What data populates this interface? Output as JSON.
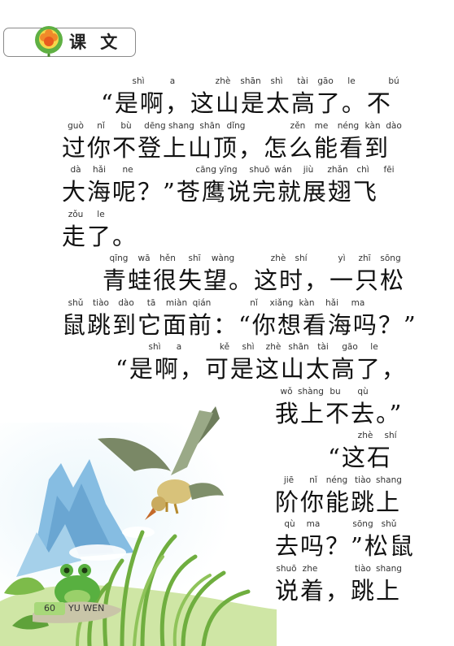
{
  "header": {
    "title": "课 文"
  },
  "lines": [
    {
      "pinyin": [
        "shì",
        "a",
        "zhè",
        "shān",
        "shì",
        "tài",
        "gāo",
        "le",
        "bú"
      ],
      "text": "“是啊，这山是太高了。不"
    },
    {
      "pinyin": [
        "guò",
        "nǐ",
        "bù",
        "dēng shang",
        "shān",
        "dǐng",
        "zěn",
        "me",
        "néng",
        "kàn",
        "dào"
      ],
      "text": "过你不登上山顶，怎么能看到"
    },
    {
      "pinyin": [
        "dà",
        "hǎi",
        "ne",
        "cāng yīng",
        "shuō",
        "wán",
        "jiù",
        "zhǎn",
        "chì",
        "fēi"
      ],
      "text": "大海呢？”苍鹰说完就展翅飞"
    },
    {
      "pinyin": [
        "zǒu",
        "le"
      ],
      "text": "走了。"
    },
    {
      "pinyin": [
        "qīng",
        "wā",
        "hěn",
        "shī",
        "wàng",
        "zhè",
        "shí",
        "yì",
        "zhī",
        "sōng"
      ],
      "text": "青蛙很失望。这时，一只松"
    },
    {
      "pinyin": [
        "shǔ",
        "tiào",
        "dào",
        "tā",
        "miàn",
        "qián",
        "nǐ",
        "xiǎng",
        "kàn",
        "hǎi",
        "ma"
      ],
      "text": "鼠跳到它面前：“你想看海吗？”"
    },
    {
      "pinyin": [
        "shì",
        "a",
        "kě",
        "shì",
        "zhè",
        "shān",
        "tài",
        "gāo",
        "le"
      ],
      "text": "“是啊，可是这山太高了，"
    },
    {
      "pinyin": [
        "wǒ",
        "shàng",
        "bu",
        "qù"
      ],
      "text": "我上不去。”"
    },
    {
      "pinyin": [
        "zhè",
        "shí"
      ],
      "text": "“这石"
    },
    {
      "pinyin": [
        "jiē",
        "nǐ",
        "néng",
        "tiào",
        "shang"
      ],
      "text": "阶你能跳上"
    },
    {
      "pinyin": [
        "qù",
        "ma",
        "sōng",
        "shǔ"
      ],
      "text": "去吗？”松鼠"
    },
    {
      "pinyin": [
        "shuō",
        "zhe",
        "tiào",
        "shang"
      ],
      "text": "说着，跳上"
    }
  ],
  "footer": {
    "page_number": "60",
    "subject": "YU WEN"
  },
  "colors": {
    "sky": "#d4ecf6",
    "mountain": "#7fb6dd",
    "grass": "#8fc35a",
    "eagle": "#8a9a70"
  }
}
